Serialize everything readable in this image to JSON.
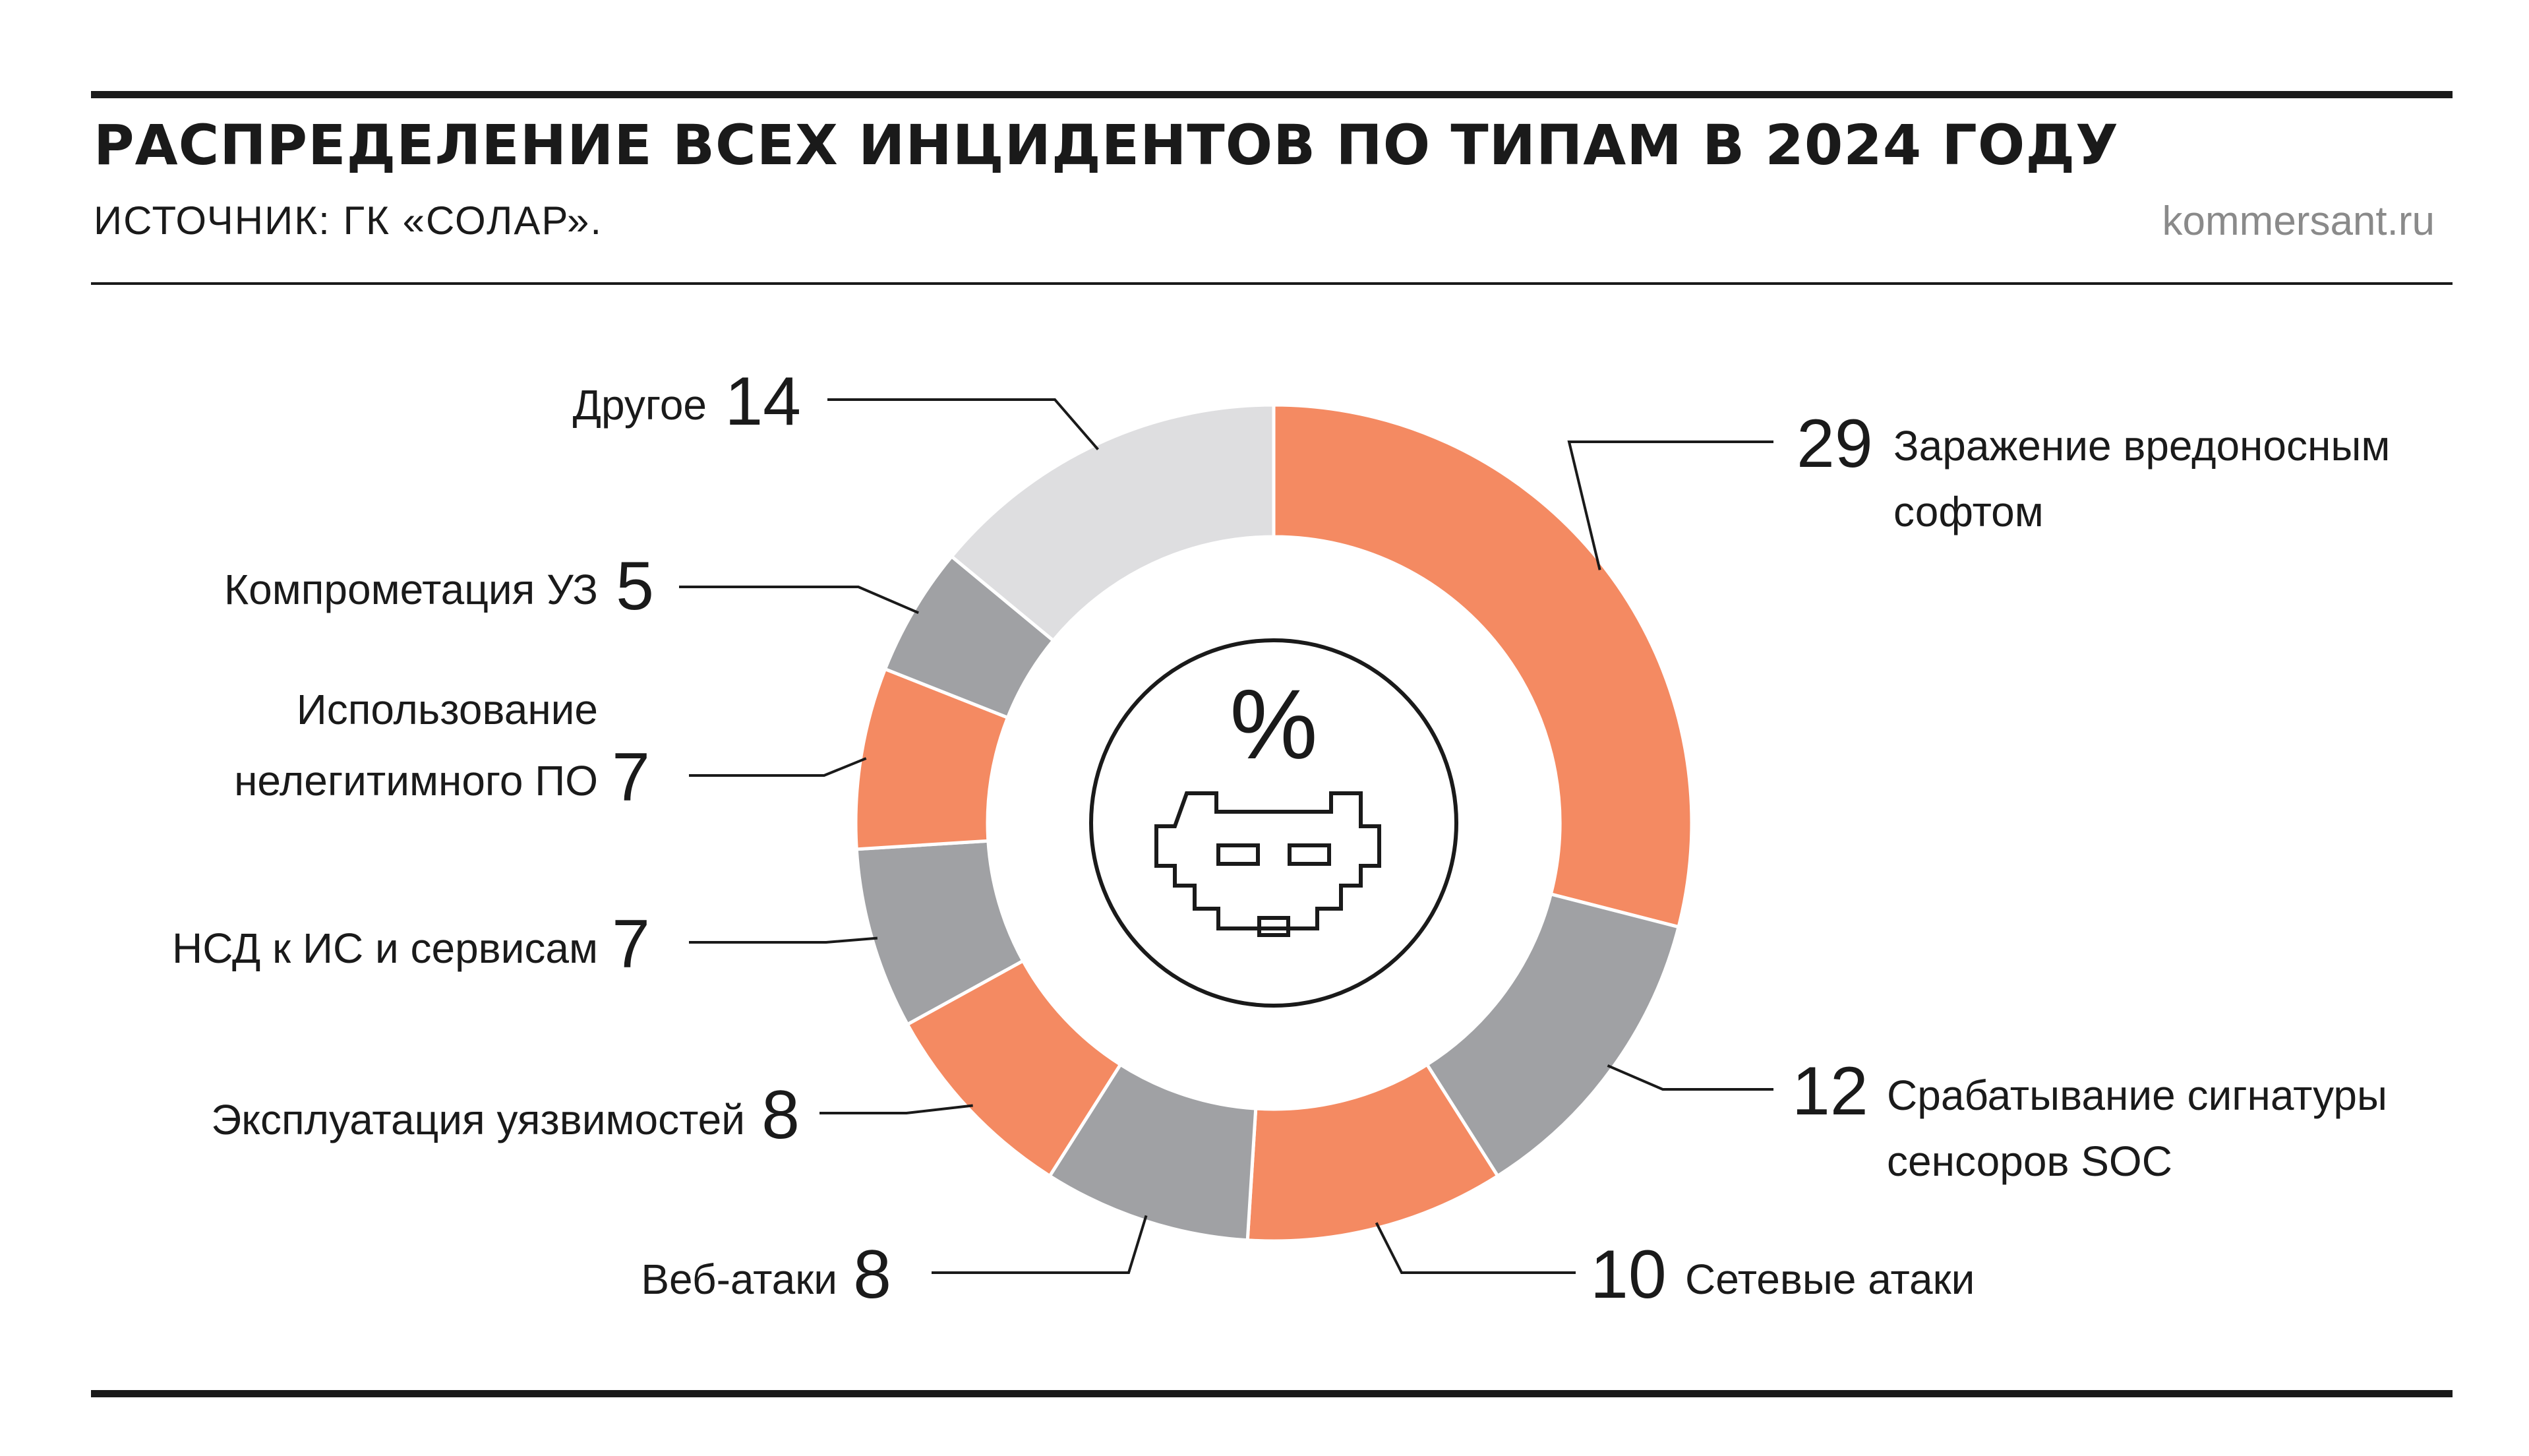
{
  "header": {
    "title": "РАСПРЕДЕЛЕНИЕ ВСЕХ ИНЦИДЕНТОВ ПО ТИПАМ В 2024 ГОДУ",
    "source": "ИСТОЧНИК: ГК «СОЛАР».",
    "site": "kommersant.ru"
  },
  "center": {
    "symbol": "%",
    "icon": "pixel-robot-icon"
  },
  "colors": {
    "orange": "#F48A62",
    "gray": "#A0A1A4",
    "light": "#DEDEE0",
    "text": "#1a1a1a"
  },
  "chart_data": {
    "type": "pie",
    "unit": "%",
    "slices": [
      {
        "value": 29,
        "label": [
          "Заражение вредоносным",
          "софтом"
        ],
        "color": "#F48A62"
      },
      {
        "value": 12,
        "label": [
          "Срабатывание сигнатуры",
          "сенсоров SOC"
        ],
        "color": "#A0A1A4"
      },
      {
        "value": 10,
        "label": [
          "Сетевые атаки"
        ],
        "color": "#F48A62"
      },
      {
        "value": 8,
        "label": [
          "Веб-атаки"
        ],
        "color": "#A0A1A4"
      },
      {
        "value": 8,
        "label": [
          "Эксплуатация уязвимостей"
        ],
        "color": "#F48A62"
      },
      {
        "value": 7,
        "label": [
          "НСД к ИС и сервисам"
        ],
        "color": "#A0A1A4"
      },
      {
        "value": 7,
        "label": [
          "Использование",
          "нелегитимного ПО"
        ],
        "color": "#F48A62"
      },
      {
        "value": 5,
        "label": [
          "Компрометация УЗ"
        ],
        "color": "#A0A1A4"
      },
      {
        "value": 14,
        "label": [
          "Другое"
        ],
        "color": "#DEDEE0"
      }
    ]
  }
}
